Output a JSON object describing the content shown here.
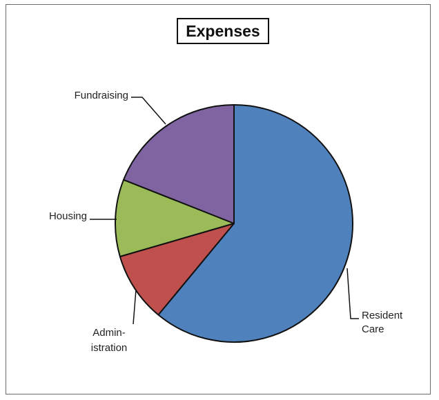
{
  "chart_data": {
    "type": "pie",
    "title": "Expenses",
    "slices": [
      {
        "label_lines": [
          "Resident",
          "Care"
        ],
        "value": 61,
        "color": "#4f81bd"
      },
      {
        "label_lines": [
          "Admin-",
          "istration"
        ],
        "value": 9.5,
        "color": "#c0504d"
      },
      {
        "label_lines": [
          "Housing"
        ],
        "value": 10.5,
        "color": "#9bbb59"
      },
      {
        "label_lines": [
          "Fundraising"
        ],
        "value": 19,
        "color": "#8064a2"
      }
    ],
    "start_angle_note": "first slice starts at 12 o'clock, proceeding clockwise"
  }
}
